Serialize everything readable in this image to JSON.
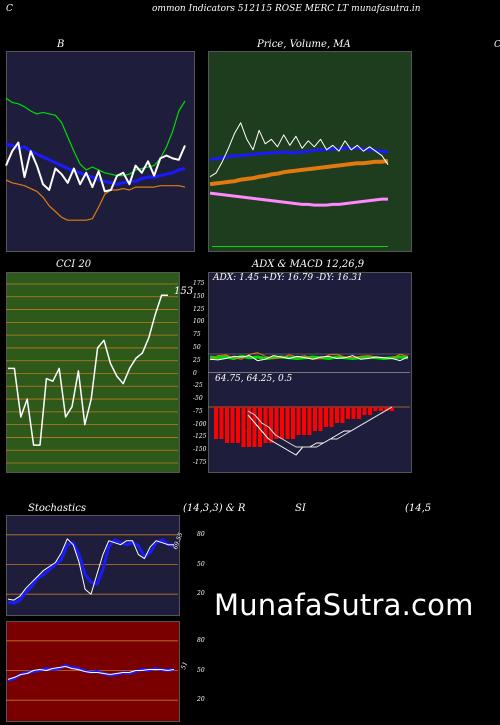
{
  "header": {
    "left_letter": "C",
    "title": "ommon  Indicators 512115 ROSE MERC LT munafasutra.in",
    "right_letter": "C"
  },
  "watermark": "MunafaSutra.com",
  "colors": {
    "navy": "#1e1e3c",
    "forest": "#1e3c1e",
    "green_bands": "#3a6a1a",
    "maroon": "#7a0000",
    "orange": "#e07a10",
    "blue": "#1a1aff",
    "lime": "#00dd00",
    "magenta": "#ff88ff",
    "red": "#ff0000"
  },
  "chart_data": [
    {
      "id": "bollinger",
      "type": "line",
      "title": "B",
      "series": [
        {
          "color": "#00dd00",
          "values": [
            103.5,
            103.2,
            103.1,
            102.9,
            102.6,
            102.4,
            102.5,
            102.4,
            102.3,
            101.8,
            100.8,
            99.8,
            98.9,
            98.5,
            98.7,
            98.5,
            98.3,
            98.2,
            98.1,
            98.1,
            98.2,
            98.5,
            98.6,
            98.7,
            98.8,
            99.3,
            100.1,
            101.2,
            102.6,
            103.3
          ]
        },
        {
          "color": "#1a1aff",
          "values": [
            100.3,
            100.2,
            100.0,
            100.1,
            99.8,
            99.6,
            99.4,
            99.2,
            99.0,
            98.8,
            98.6,
            98.4,
            98.3,
            98.1,
            98.0,
            97.8,
            97.7,
            97.6,
            97.5,
            97.6,
            97.7,
            97.7,
            97.9,
            98.0,
            98.0,
            98.1,
            98.2,
            98.3,
            98.5,
            98.6
          ]
        },
        {
          "color": "#e07a10",
          "values": [
            97.8,
            97.6,
            97.5,
            97.4,
            97.2,
            97.0,
            96.6,
            96.0,
            95.6,
            95.2,
            95.0,
            95.0,
            95.0,
            95.0,
            95.1,
            95.9,
            96.8,
            97.1,
            97.1,
            97.2,
            97.1,
            97.3,
            97.3,
            97.3,
            97.3,
            97.4,
            97.4,
            97.4,
            97.4,
            97.3
          ]
        },
        {
          "color": "#ffffff",
          "values": [
            98.8,
            99.8,
            100.4,
            98.0,
            99.8,
            98.8,
            97.5,
            97.1,
            98.6,
            98.2,
            97.6,
            98.6,
            97.5,
            98.3,
            97.3,
            98.4,
            97.0,
            97.1,
            98.1,
            98.3,
            97.5,
            98.8,
            98.3,
            99.1,
            98.1,
            99.3,
            99.5,
            99.3,
            99.2,
            100.2
          ]
        }
      ],
      "ylim": [
        93.2,
        106.5
      ]
    },
    {
      "id": "price_ma",
      "type": "line",
      "title": "Price,  Volume,  MA",
      "overlap_text": "ㅤ",
      "series": [
        {
          "color": "#ff88ff",
          "values": [
            68,
            67,
            66,
            65,
            64,
            63,
            62,
            61,
            60,
            59,
            58,
            57,
            56,
            55,
            54,
            53,
            53,
            52,
            52,
            52,
            53,
            53,
            54,
            55,
            56,
            57,
            58,
            59,
            60,
            60
          ]
        },
        {
          "color": "#e07a10",
          "values": [
            80,
            81,
            82,
            83,
            84,
            86,
            87,
            88,
            90,
            91,
            93,
            94,
            96,
            97,
            98,
            99,
            100,
            101,
            102,
            103,
            104,
            105,
            106,
            107,
            108,
            108,
            109,
            110,
            110,
            111
          ]
        },
        {
          "color": "#1a1aff",
          "values": [
            113,
            114,
            115,
            117,
            118,
            118,
            119,
            120,
            121,
            121,
            122,
            122,
            123,
            122,
            122,
            123,
            124,
            125,
            126,
            126,
            127,
            127,
            128,
            128,
            128,
            127,
            126,
            125,
            124,
            123
          ]
        },
        {
          "color": "#ffffff",
          "values": [
            90,
            95,
            110,
            128,
            148,
            162,
            140,
            126,
            152,
            134,
            140,
            130,
            146,
            132,
            144,
            128,
            138,
            130,
            140,
            126,
            132,
            124,
            138,
            126,
            132,
            124,
            130,
            124,
            118,
            106
          ]
        }
      ],
      "ylim": [
        0,
        250
      ]
    },
    {
      "id": "cci",
      "type": "line",
      "title": "CCI 20",
      "last_label": "153",
      "ticks": [
        "175",
        "150",
        "125",
        "100",
        "75",
        "50",
        "25",
        "0",
        "-25",
        "-50",
        "-75",
        "-100",
        "-125",
        "-150",
        "-175"
      ],
      "series": [
        {
          "color": "#ffffff",
          "values": [
            10,
            10,
            -85,
            -50,
            -140,
            -140,
            -10,
            -15,
            10,
            -85,
            -65,
            5,
            -100,
            -50,
            50,
            65,
            20,
            -5,
            -20,
            10,
            30,
            40,
            70,
            115,
            153,
            153
          ]
        }
      ],
      "ylim": [
        -175,
        175
      ]
    },
    {
      "id": "adx",
      "type": "line",
      "title": "ADX  & MACD 12,26,9",
      "readout": "ADX: 1.45  +DY: 16.79  -DY: 16.31",
      "series": [
        {
          "color": "#00dd00",
          "values": [
            18,
            17,
            18,
            16,
            19,
            17,
            18,
            16,
            17,
            18,
            17,
            16,
            17,
            18,
            17,
            16,
            18,
            17,
            16,
            17,
            18,
            17,
            16,
            17,
            18,
            17
          ]
        },
        {
          "color": "#e07a10",
          "values": [
            14,
            20,
            21,
            17,
            15,
            22,
            24,
            19,
            16,
            17,
            21,
            18,
            20,
            15,
            16,
            21,
            22,
            18,
            17,
            19,
            20,
            18,
            17,
            16,
            22,
            19
          ]
        },
        {
          "color": "#ffffff",
          "values": [
            15,
            14,
            16,
            19,
            18,
            20,
            13,
            15,
            20,
            18,
            16,
            19,
            17,
            15,
            18,
            19,
            16,
            17,
            20,
            15,
            16,
            18,
            17,
            16,
            13,
            18
          ]
        }
      ],
      "ylim": [
        0,
        50
      ]
    },
    {
      "id": "macd",
      "type": "bar",
      "readout": "64.75,  64.25,  0.5",
      "bars": [
        -8,
        -8,
        -9,
        -9,
        -9,
        -10,
        -10,
        -10,
        -10,
        -9,
        -9,
        -8,
        -8,
        -8,
        -8,
        -7,
        -7,
        -7,
        -6,
        -6,
        -5,
        -5,
        -4,
        -4,
        -3,
        -3,
        -3,
        -2,
        -2,
        -1,
        -1,
        -1,
        -1
      ],
      "series": [
        {
          "color": "#ffffff",
          "values": [
            -2,
            -4,
            -6,
            -8,
            -9,
            -10,
            -11,
            -12,
            -10,
            -10,
            -9,
            -9,
            -8,
            -7,
            -6,
            -6,
            -5,
            -4,
            -3,
            -2,
            -1,
            0
          ]
        },
        {
          "color": "#dddddd",
          "values": [
            -1,
            -2,
            -4,
            -5,
            -7,
            -8,
            -9,
            -10,
            -10,
            -10,
            -10,
            -9,
            -8,
            -8,
            -7,
            -6,
            -5,
            -4,
            -3,
            -2,
            -1,
            0
          ]
        }
      ],
      "ylim": [
        -16,
        6
      ]
    },
    {
      "id": "stochastics",
      "type": "line",
      "title_left": "Stochastics",
      "title_mid": "(14,3,3) & R",
      "last_label": "69.55",
      "ticks": [
        "80",
        "50",
        "20"
      ],
      "series": [
        {
          "color": "#1a1aff",
          "values": [
            12,
            11,
            14,
            22,
            28,
            36,
            40,
            45,
            50,
            55,
            70,
            72,
            60,
            40,
            32,
            30,
            45,
            68,
            75,
            72,
            70,
            72,
            69,
            58,
            62,
            72,
            75,
            70,
            69
          ]
        },
        {
          "color": "#ffffff",
          "values": [
            15,
            14,
            18,
            26,
            32,
            38,
            44,
            48,
            52,
            62,
            76,
            70,
            52,
            25,
            20,
            40,
            60,
            74,
            72,
            70,
            74,
            74,
            60,
            56,
            68,
            74,
            72,
            70,
            70
          ]
        }
      ],
      "ylim": [
        0,
        100
      ]
    },
    {
      "id": "rsi",
      "type": "line",
      "title_left": "SI",
      "title_right": "(14,5",
      "last_label": "51",
      "ticks": [
        "80",
        "50",
        "20"
      ],
      "series": [
        {
          "color": "#1a1aff",
          "values": [
            40,
            42,
            46,
            48,
            49,
            50,
            52,
            51,
            52,
            55,
            53,
            52,
            50,
            48,
            49,
            47,
            45,
            46,
            48,
            47,
            49,
            51,
            50,
            52,
            51,
            50,
            51
          ]
        },
        {
          "color": "#ffffff",
          "values": [
            41,
            43,
            46,
            47,
            50,
            51,
            50,
            52,
            53,
            54,
            52,
            51,
            49,
            48,
            48,
            47,
            46,
            47,
            48,
            48,
            50,
            50,
            51,
            51,
            51,
            50,
            51
          ]
        }
      ],
      "ylim": [
        0,
        100
      ]
    }
  ]
}
